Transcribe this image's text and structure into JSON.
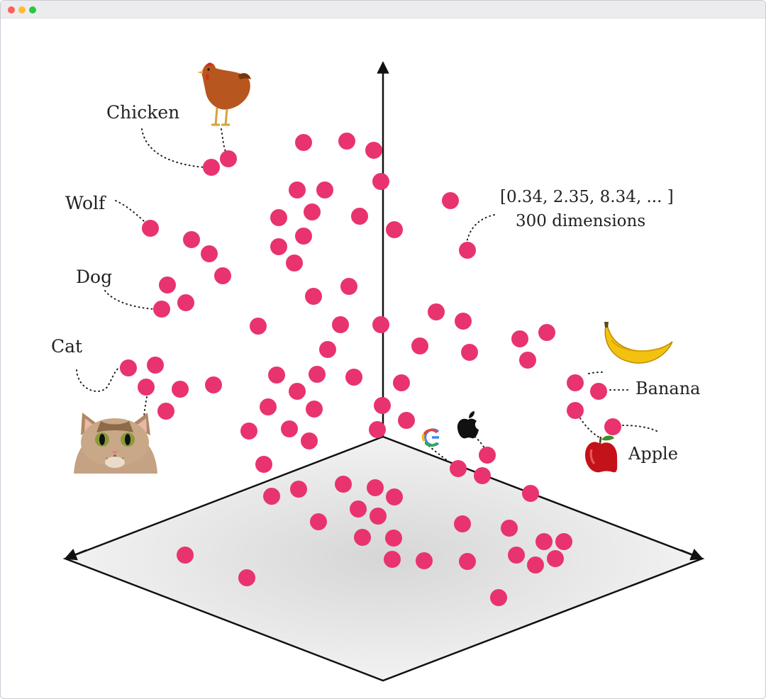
{
  "window": {
    "controls": [
      "close",
      "minimize",
      "zoom"
    ]
  },
  "labels": {
    "chicken": "Chicken",
    "wolf": "Wolf",
    "dog": "Dog",
    "cat": "Cat",
    "banana": "Banana",
    "apple": "Apple",
    "vector": "[0.34, 2.35, 8.34, ... ]",
    "dimensions": "300 dimensions"
  },
  "icons": [
    "chicken-icon",
    "cat-icon",
    "banana-icon",
    "apple-fruit-icon",
    "google-logo-icon",
    "apple-logo-icon"
  ],
  "colors": {
    "point": "#e8336f",
    "axis": "#111111",
    "plane_center": "#d9d9d9",
    "plane_edge": "#f4f4f4"
  }
}
